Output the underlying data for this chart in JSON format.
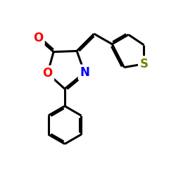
{
  "background_color": "#ffffff",
  "bond_color": "#000000",
  "atom_colors": {
    "O_carbonyl": "#ff0000",
    "O_ring": "#ff0000",
    "N": "#0000ff",
    "S": "#808000"
  },
  "bond_width": 2.2,
  "font_size": 11
}
